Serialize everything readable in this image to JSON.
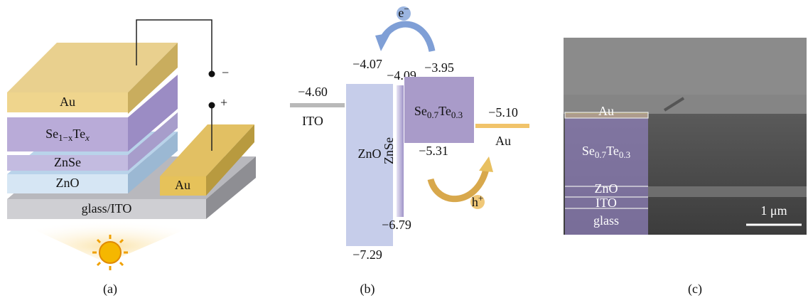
{
  "panel_a": {
    "caption": "(a)",
    "au_top": "Au",
    "absorber": [
      "Se",
      "1−x",
      "Te",
      "x"
    ],
    "znse": "ZnSe",
    "zno": "ZnO",
    "au_pad": "Au",
    "substrate": "glass/ITO",
    "minus": "−",
    "plus": "+"
  },
  "panel_b": {
    "caption": "(b)",
    "electron": [
      "e",
      "−"
    ],
    "hole": [
      "h",
      "+"
    ],
    "ito": {
      "level": "−4.60",
      "label": "ITO"
    },
    "zno": {
      "top": "−4.07",
      "bottom": "−7.29",
      "label": "ZnO"
    },
    "znse": {
      "top": "−4.09",
      "bottom": "−6.79",
      "label": "ZnSe"
    },
    "absorber": {
      "top": "−3.95",
      "bottom": "−5.31",
      "label": [
        "Se",
        "0.7",
        "Te",
        "0.3"
      ]
    },
    "au": {
      "level": "−5.10",
      "label": "Au"
    }
  },
  "panel_c": {
    "caption": "(c)",
    "au": "Au",
    "absorber": [
      "Se",
      "0.7",
      "Te",
      "0.3"
    ],
    "zno": "ZnO",
    "ito": "ITO",
    "glass": "glass",
    "scale": "1 μm"
  }
}
